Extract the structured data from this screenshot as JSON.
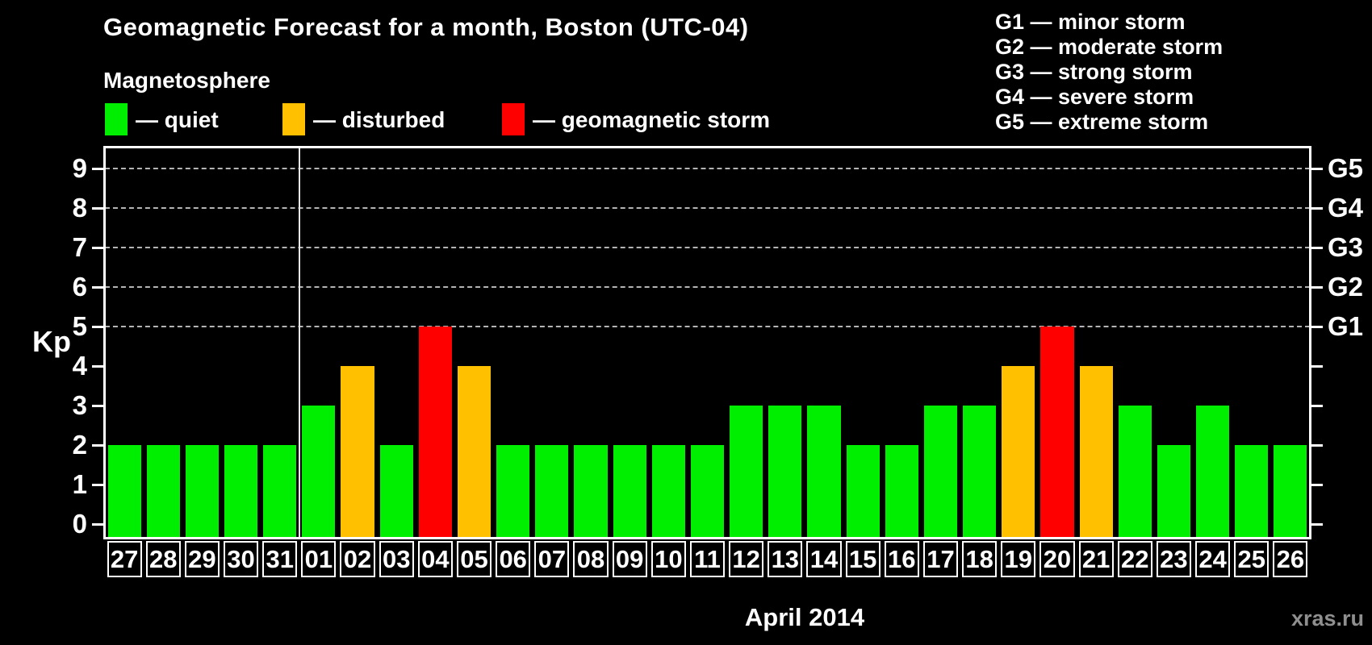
{
  "legend": {
    "title": "Magnetosphere",
    "items": [
      {
        "key": "quiet",
        "label": "— quiet",
        "color": "#00ee00"
      },
      {
        "key": "disturbed",
        "label": "— disturbed",
        "color": "#ffc000"
      },
      {
        "key": "storm",
        "label": "— geomagnetic storm",
        "color": "#ff0000"
      }
    ]
  },
  "g_scale": [
    "G1 — minor storm",
    "G2 — moderate storm",
    "G3 — strong storm",
    "G4 — severe storm",
    "G5 — extreme storm"
  ],
  "watermark": "xras.ru",
  "chart_data": {
    "type": "bar",
    "title": "Geomagnetic Forecast for a month, Boston (UTC-04)",
    "xlabel": "April 2014",
    "ylabel": "Kp",
    "ylim": [
      0,
      9.5
    ],
    "yticks": [
      0,
      1,
      2,
      3,
      4,
      5,
      6,
      7,
      8,
      9
    ],
    "gridlines_kp": [
      5,
      6,
      7,
      8,
      9
    ],
    "grid": "dashed horizontal lines at Kp 5-9 only",
    "legend_position": "top-left",
    "right_axis_labels": [
      {
        "kp": 5,
        "label": "G1"
      },
      {
        "kp": 6,
        "label": "G2"
      },
      {
        "kp": 7,
        "label": "G3"
      },
      {
        "kp": 8,
        "label": "G4"
      },
      {
        "kp": 9,
        "label": "G5"
      }
    ],
    "month_separator_after_index": 4,
    "categories": [
      "27",
      "28",
      "29",
      "30",
      "31",
      "01",
      "02",
      "03",
      "04",
      "05",
      "06",
      "07",
      "08",
      "09",
      "10",
      "11",
      "12",
      "13",
      "14",
      "15",
      "16",
      "17",
      "18",
      "19",
      "20",
      "21",
      "22",
      "23",
      "24",
      "25",
      "26"
    ],
    "values": [
      2,
      2,
      2,
      2,
      2,
      3,
      4,
      2,
      5,
      4,
      2,
      2,
      2,
      2,
      2,
      2,
      3,
      3,
      3,
      2,
      2,
      3,
      3,
      4,
      5,
      4,
      3,
      2,
      3,
      2,
      2
    ],
    "statuses": [
      "quiet",
      "quiet",
      "quiet",
      "quiet",
      "quiet",
      "quiet",
      "disturbed",
      "quiet",
      "storm",
      "disturbed",
      "quiet",
      "quiet",
      "quiet",
      "quiet",
      "quiet",
      "quiet",
      "quiet",
      "quiet",
      "quiet",
      "quiet",
      "quiet",
      "quiet",
      "quiet",
      "disturbed",
      "storm",
      "disturbed",
      "quiet",
      "quiet",
      "quiet",
      "quiet",
      "quiet"
    ]
  }
}
